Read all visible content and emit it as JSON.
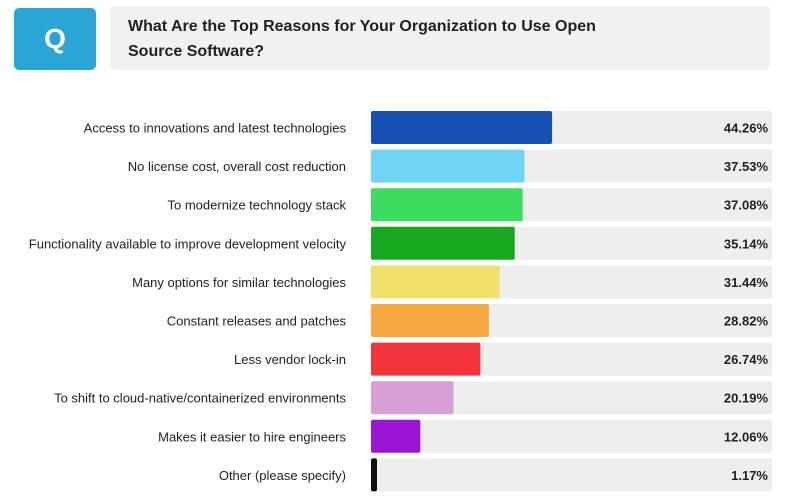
{
  "badge": {
    "letter": "Q"
  },
  "question": "What Are the Top Reasons for Your Organization to Use Open Source Software?",
  "chart_data": {
    "type": "bar",
    "orientation": "horizontal",
    "categories": [
      "Access to innovations and latest technologies",
      "No license cost, overall cost reduction",
      "To modernize technology stack",
      "Functionality available to improve development velocity",
      "Many options for similar technologies",
      "Constant releases and patches",
      "Less vendor lock-in",
      "To shift to cloud-native/containerized environments",
      "Makes it easier to hire engineers",
      "Other (please specify)"
    ],
    "values": [
      44.26,
      37.53,
      37.08,
      35.14,
      31.44,
      28.82,
      26.74,
      20.19,
      12.06,
      1.17
    ],
    "value_labels": [
      "44.26%",
      "37.53%",
      "37.08%",
      "35.14%",
      "31.44%",
      "28.82%",
      "26.74%",
      "20.19%",
      "12.06%",
      "1.17%"
    ],
    "colors": [
      "#1650b5",
      "#70d4f5",
      "#3ddc5f",
      "#18a81f",
      "#f2e06b",
      "#f5a940",
      "#f2343b",
      "#d7a1d8",
      "#9b16d4",
      "#111111"
    ],
    "track_color": "#eeeeee",
    "xlim": [
      0,
      100
    ]
  }
}
